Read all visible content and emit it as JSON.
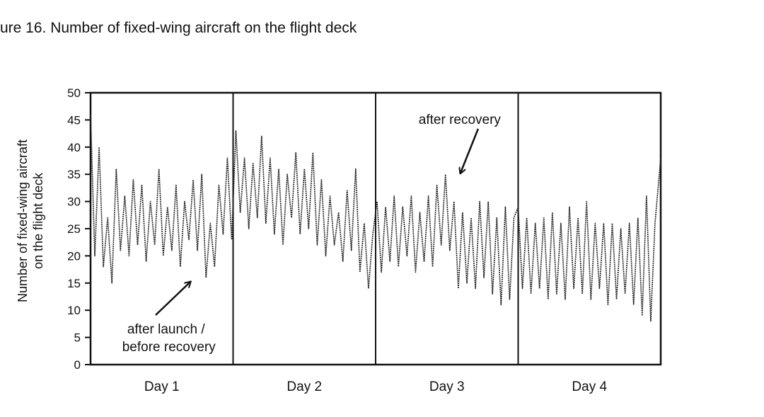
{
  "title": "ure 16.  Number of fixed-wing aircraft on the flight deck",
  "chart_data": {
    "type": "line",
    "ylabel_line1": "Number of fixed-wing aircraft",
    "ylabel_line2": "on the flight deck",
    "xlabel": "",
    "ylim": [
      0,
      50
    ],
    "yticks": [
      0,
      5,
      10,
      15,
      20,
      25,
      30,
      35,
      40,
      45,
      50
    ],
    "categories": [
      "Day 1",
      "Day 2",
      "Day 3",
      "Day 4"
    ],
    "grid": false,
    "legend": "none",
    "series": [
      {
        "x": [
          0,
          0.03,
          0.06,
          0.09,
          0.12,
          0.15,
          0.18,
          0.21,
          0.24,
          0.27,
          0.3,
          0.33,
          0.36,
          0.39,
          0.42,
          0.45,
          0.48,
          0.51,
          0.54,
          0.57,
          0.6,
          0.63,
          0.66,
          0.69,
          0.72,
          0.75,
          0.78,
          0.81,
          0.84,
          0.87,
          0.9,
          0.93,
          0.96,
          0.99,
          1.02,
          1.05,
          1.08,
          1.11,
          1.14,
          1.17,
          1.2,
          1.23,
          1.26,
          1.29,
          1.32,
          1.35,
          1.38,
          1.41,
          1.44,
          1.47,
          1.5,
          1.53,
          1.56,
          1.59,
          1.62,
          1.65,
          1.68,
          1.71,
          1.74,
          1.77,
          1.8,
          1.83,
          1.86,
          1.89,
          1.92,
          1.95,
          1.98,
          2.01,
          2.04,
          2.07,
          2.1,
          2.13,
          2.16,
          2.19,
          2.22,
          2.25,
          2.28,
          2.31,
          2.34,
          2.37,
          2.4,
          2.43,
          2.46,
          2.49,
          2.52,
          2.55,
          2.58,
          2.61,
          2.64,
          2.67,
          2.7,
          2.73,
          2.76,
          2.79,
          2.82,
          2.85,
          2.88,
          2.91,
          2.94,
          2.97,
          3.0,
          3.03,
          3.06,
          3.09,
          3.12,
          3.15,
          3.18,
          3.21,
          3.24,
          3.27,
          3.3,
          3.33,
          3.36,
          3.39,
          3.42,
          3.45,
          3.48,
          3.51,
          3.54,
          3.57,
          3.6,
          3.63,
          3.66,
          3.69,
          3.72,
          3.75,
          3.78,
          3.81,
          3.84,
          3.87,
          3.9,
          3.93,
          3.96,
          4.0
        ],
        "y": [
          46,
          20,
          40,
          18,
          27,
          15,
          36,
          21,
          31,
          20,
          34,
          22,
          33,
          19,
          30,
          22,
          36,
          20,
          29,
          21,
          33,
          18,
          30,
          23,
          34,
          21,
          35,
          16,
          26,
          18,
          33,
          24,
          38,
          23,
          43,
          28,
          38,
          25,
          37,
          27,
          42,
          26,
          38,
          24,
          36,
          22,
          35,
          27,
          39,
          24,
          36,
          25,
          39,
          22,
          34,
          20,
          31,
          22,
          28,
          19,
          32,
          21,
          36,
          17,
          26,
          14,
          24,
          30,
          17,
          29,
          19,
          31,
          18,
          29,
          20,
          31,
          17,
          28,
          19,
          31,
          18,
          33,
          22,
          35,
          21,
          30,
          14,
          28,
          15,
          27,
          14,
          30,
          16,
          30,
          13,
          27,
          11,
          29,
          12,
          27,
          29,
          14,
          27,
          13,
          26,
          14,
          27,
          12,
          28,
          13,
          26,
          12,
          29,
          14,
          27,
          13,
          30,
          12,
          26,
          14,
          26,
          11,
          26,
          12,
          25,
          13,
          26,
          11,
          27,
          9,
          31,
          8,
          26,
          38
        ]
      }
    ],
    "annotations": [
      {
        "text": "after recovery",
        "target_day": 2.58,
        "target_y": 36
      },
      {
        "lines": [
          "after launch /",
          "before recovery"
        ],
        "target_day": 0.72,
        "target_y": 16
      }
    ]
  }
}
